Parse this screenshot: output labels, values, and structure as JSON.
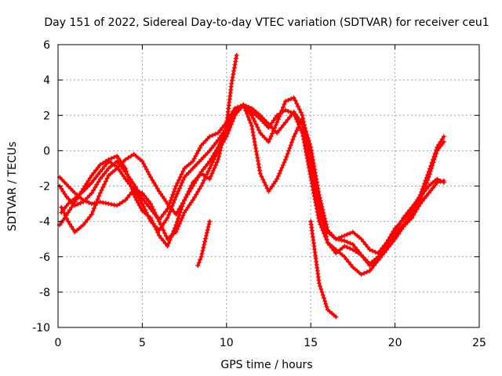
{
  "chart_data": {
    "type": "scatter",
    "title": "Day 151 of 2022, Sidereal Day-to-day VTEC variation (SDTVAR) for receiver ceu1",
    "xlabel": "GPS time / hours",
    "ylabel": "SDTVAR / TECUs",
    "xlim": [
      0,
      25
    ],
    "ylim": [
      -10,
      6
    ],
    "xticks": [
      0,
      5,
      10,
      15,
      20,
      25
    ],
    "yticks": [
      -10,
      -8,
      -6,
      -4,
      -2,
      0,
      2,
      4,
      6
    ],
    "grid": true,
    "marker": "+",
    "color": "#ff0000",
    "series": [
      {
        "name": "track-1",
        "x": [
          0.1,
          0.4,
          0.8,
          1.2,
          1.6,
          2.0,
          2.5,
          3.0,
          3.5,
          4.0,
          4.5,
          5.0,
          5.5,
          6.0,
          6.5,
          7.0,
          7.5,
          8.0,
          8.5,
          9.0,
          9.5,
          10.0,
          10.5,
          11.0,
          11.5,
          12.0,
          12.5,
          13.0,
          13.5,
          14.0,
          14.5,
          15.0,
          15.5,
          16.0,
          16.5,
          17.0,
          17.5,
          18.0,
          18.5,
          19.0,
          19.5,
          20.0,
          20.5,
          21.0,
          21.5,
          22.0,
          22.5,
          22.9
        ],
        "y": [
          -4.2,
          -3.8,
          -3.2,
          -2.6,
          -2.0,
          -1.4,
          -0.8,
          -0.5,
          -0.3,
          -1.0,
          -2.5,
          -3.4,
          -3.8,
          -4.8,
          -5.4,
          -4.2,
          -2.8,
          -2.0,
          -1.2,
          -0.6,
          0.2,
          1.2,
          2.2,
          2.6,
          2.4,
          2.0,
          1.5,
          1.0,
          1.6,
          2.2,
          1.5,
          -0.5,
          -3.0,
          -5.2,
          -5.6,
          -6.0,
          -6.6,
          -7.0,
          -6.8,
          -6.2,
          -5.6,
          -5.0,
          -4.3,
          -3.8,
          -3.0,
          -2.4,
          -1.8,
          -1.7
        ]
      },
      {
        "name": "track-2",
        "x": [
          0.2,
          0.6,
          1.0,
          1.5,
          2.0,
          2.5,
          3.0,
          3.5,
          4.0,
          4.5,
          5.0,
          5.5,
          6.0,
          6.5,
          7.0,
          7.5,
          8.0,
          8.5,
          9.0,
          9.5,
          10.0,
          10.5,
          11.0,
          11.5,
          12.0,
          12.5,
          13.0,
          13.5,
          14.0,
          14.5,
          15.0,
          15.5,
          16.0,
          16.5,
          17.0,
          17.5,
          18.0,
          18.5,
          19.0,
          19.5,
          20.0,
          20.5,
          21.0,
          21.5,
          22.0,
          22.5,
          22.9
        ],
        "y": [
          -3.5,
          -3.0,
          -2.7,
          -2.3,
          -1.8,
          -1.2,
          -0.6,
          -0.9,
          -1.6,
          -2.2,
          -3.0,
          -4.0,
          -4.5,
          -3.8,
          -2.6,
          -1.5,
          -1.0,
          -0.5,
          0.0,
          0.6,
          1.3,
          2.3,
          2.5,
          2.2,
          1.8,
          1.3,
          2.0,
          2.3,
          2.1,
          1.0,
          -1.5,
          -4.0,
          -5.2,
          -5.8,
          -5.4,
          -5.6,
          -5.9,
          -6.4,
          -6.0,
          -5.4,
          -4.8,
          -4.2,
          -3.6,
          -2.8,
          -1.5,
          0.0,
          0.5
        ]
      },
      {
        "name": "track-3",
        "x": [
          0.1,
          0.5,
          1.0,
          1.5,
          2.0,
          2.5,
          3.0,
          3.5,
          4.0,
          4.5,
          5.0,
          5.5,
          6.0,
          6.5,
          7.0,
          7.5,
          8.0,
          8.5,
          9.0,
          9.5,
          10.0,
          10.5,
          11.0,
          11.5,
          12.0,
          12.5,
          13.0,
          13.5,
          14.0,
          14.5,
          15.0,
          15.5,
          16.0,
          16.5,
          17.0,
          17.5,
          18.0,
          18.5,
          19.0,
          19.5,
          20.0,
          20.5,
          21.0,
          21.5,
          22.0,
          22.5,
          22.9
        ],
        "y": [
          -2.0,
          -2.6,
          -3.1,
          -2.9,
          -2.4,
          -1.6,
          -1.0,
          -0.6,
          -1.2,
          -1.9,
          -2.7,
          -3.3,
          -3.9,
          -3.3,
          -2.0,
          -1.0,
          -0.6,
          0.3,
          0.8,
          1.0,
          1.6,
          2.4,
          2.6,
          2.0,
          1.0,
          0.5,
          1.6,
          2.8,
          3.0,
          2.0,
          -0.8,
          -3.6,
          -4.6,
          -5.0,
          -4.8,
          -4.6,
          -5.0,
          -5.6,
          -5.8,
          -5.2,
          -4.4,
          -3.9,
          -3.4,
          -2.5,
          -1.2,
          0.2,
          0.8
        ]
      },
      {
        "name": "track-4",
        "x": [
          0.1,
          0.5,
          1.0,
          1.5,
          2.0,
          2.5,
          3.0,
          3.5,
          4.0,
          4.5,
          5.0,
          5.5,
          6.0,
          6.5,
          7.0,
          7.5,
          8.0,
          8.5,
          9.0,
          9.5,
          10.0,
          10.5,
          11.0,
          11.5,
          12.0,
          12.5,
          13.0,
          13.5,
          14.0,
          14.5,
          15.0,
          15.5,
          16.0,
          16.5,
          17.0,
          17.5,
          18.0,
          18.5,
          19.0,
          19.5,
          20.0,
          20.5,
          21.0,
          21.5,
          22.0,
          22.5,
          22.9
        ],
        "y": [
          -1.5,
          -1.9,
          -2.4,
          -2.8,
          -3.0,
          -2.9,
          -3.0,
          -3.1,
          -2.8,
          -2.2,
          -2.4,
          -3.0,
          -4.0,
          -5.0,
          -4.6,
          -3.5,
          -2.8,
          -2.0,
          -1.0,
          0.0,
          0.8,
          2.0,
          2.6,
          1.4,
          -1.3,
          -2.3,
          -1.6,
          -0.5,
          0.8,
          1.8,
          0.2,
          -2.5,
          -4.5,
          -5.0,
          -5.1,
          -5.3,
          -5.9,
          -6.5,
          -6.2,
          -5.6,
          -4.6,
          -3.8,
          -3.2,
          -2.6,
          -2.0,
          -1.6,
          -1.8
        ]
      },
      {
        "name": "track-5",
        "x": [
          0.2,
          0.6,
          1.0,
          1.5,
          2.0,
          2.5,
          3.0,
          3.5,
          4.0,
          4.5,
          5.0,
          5.5,
          6.0,
          6.5,
          7.0,
          7.5,
          8.0,
          8.5,
          9.0,
          9.5,
          10.0,
          10.3,
          10.6
        ],
        "y": [
          -3.2,
          -4.0,
          -4.6,
          -4.2,
          -3.6,
          -2.4,
          -1.4,
          -1.0,
          -0.5,
          -0.2,
          -0.6,
          -1.5,
          -2.3,
          -3.0,
          -3.6,
          -2.8,
          -1.8,
          -1.3,
          -1.6,
          -0.5,
          1.5,
          3.8,
          5.4
        ]
      },
      {
        "name": "track-6",
        "x": [
          8.3,
          8.5,
          8.8,
          9.0
        ],
        "y": [
          -6.5,
          -6.0,
          -4.8,
          -4.0
        ]
      },
      {
        "name": "track-7",
        "x": [
          15.0,
          15.5,
          16.0,
          16.5
        ],
        "y": [
          -4.0,
          -7.5,
          -9.0,
          -9.4
        ]
      }
    ]
  }
}
